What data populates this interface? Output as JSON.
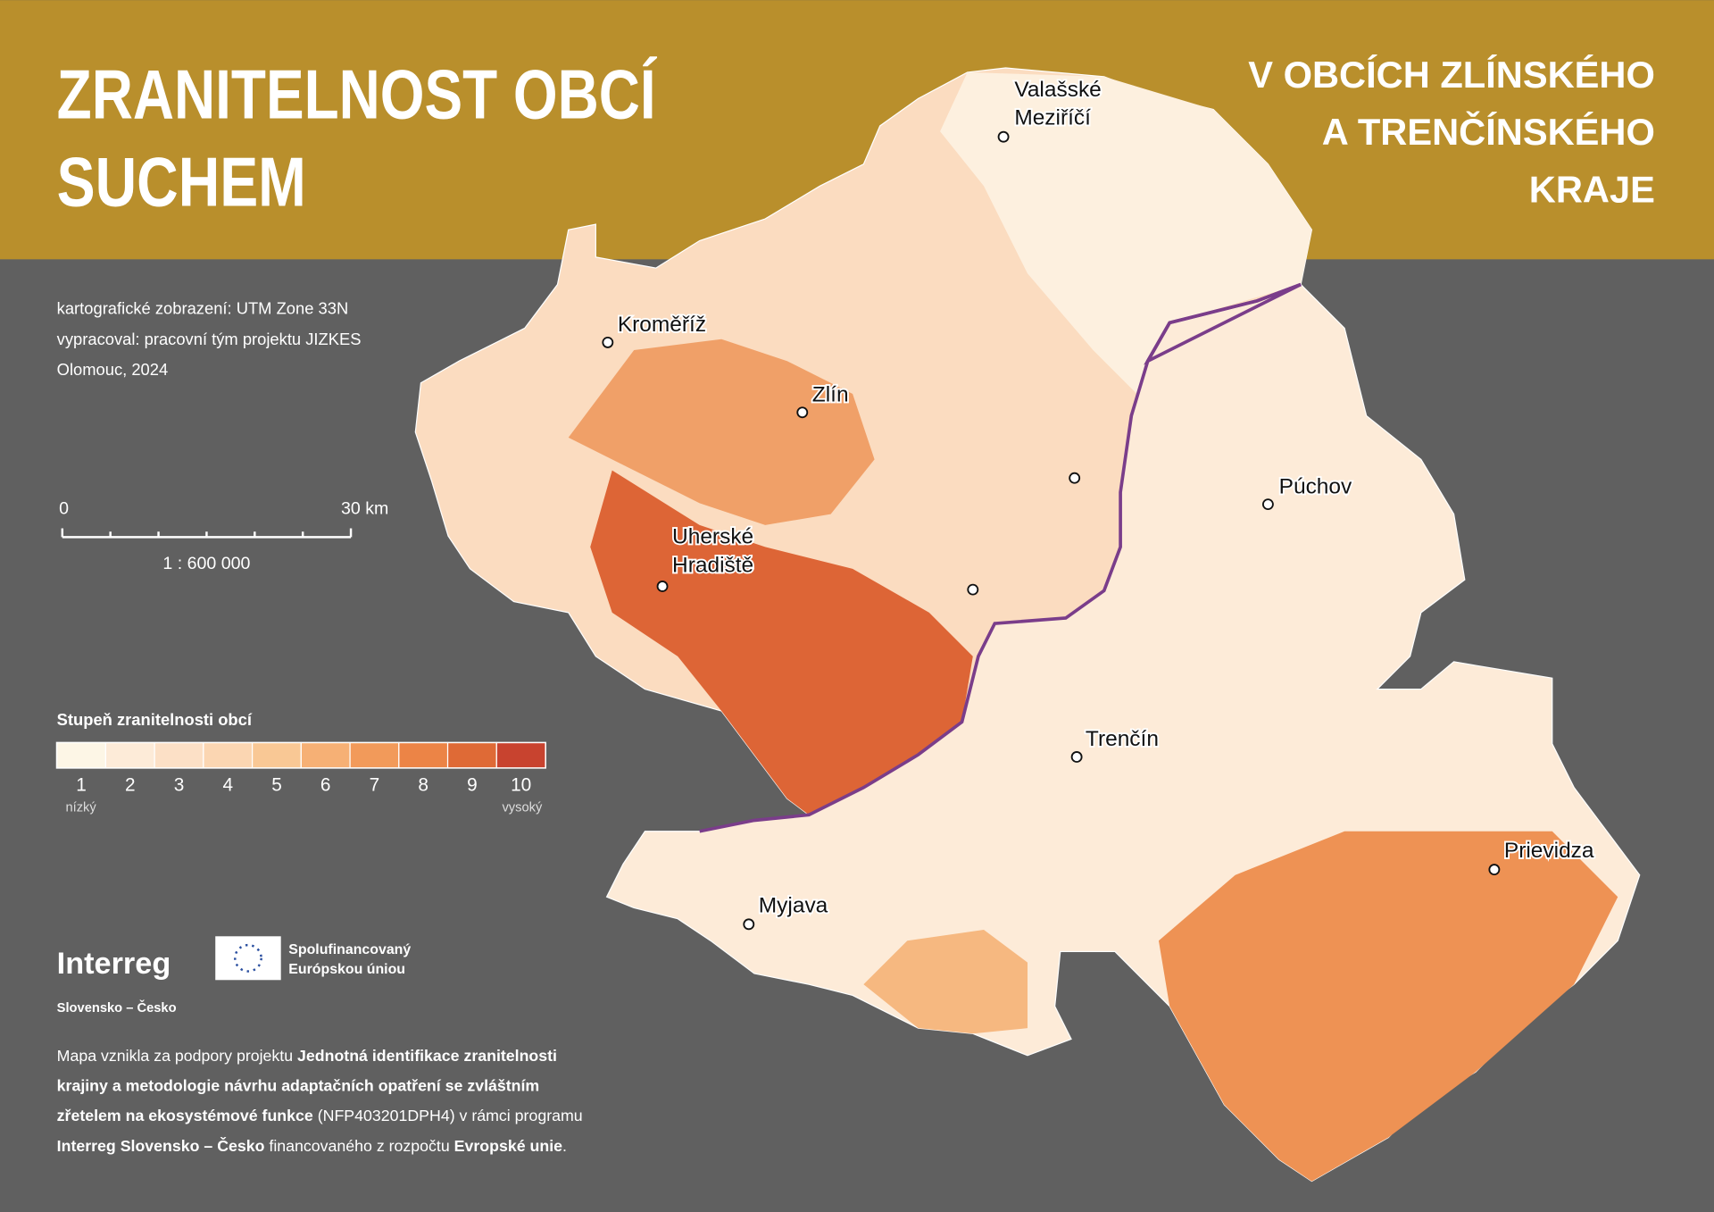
{
  "header": {
    "title": [
      "ZRANITELNOST OBCÍ",
      "SUCHEM"
    ],
    "subtitle": [
      "V OBCÍCH ZLÍNSKÉHO",
      "A TRENČÍNSKÉHO",
      "KRAJE"
    ]
  },
  "info": [
    "kartografické zobrazení: UTM Zone 33N",
    "vypracoval: pracovní tým projektu JIZKES",
    "Olomouc, 2024"
  ],
  "scale": {
    "start": "0",
    "end": "30 km",
    "ratio": "1 : 600 000"
  },
  "legend": {
    "title": "Stupeň zranitelnosti obcí",
    "classes": [
      1,
      2,
      3,
      4,
      5,
      6,
      7,
      8,
      9,
      10
    ],
    "colors": [
      "#fdf6e6",
      "#fdebd8",
      "#fce0c6",
      "#fbd6b2",
      "#f9c895",
      "#f6b075",
      "#f29a5a",
      "#ec8446",
      "#df6a36",
      "#c8432f"
    ],
    "low": "nízký",
    "high": "vysoký"
  },
  "cities": [
    {
      "name": [
        "Valašské",
        "Meziříčí"
      ]
    },
    {
      "name": [
        "Kroměříž"
      ]
    },
    {
      "name": [
        "Zlín"
      ]
    },
    {
      "name": [
        "Uherské",
        "Hradiště"
      ]
    },
    {
      "name": [
        "Púchov"
      ]
    },
    {
      "name": [
        "Trenčín"
      ]
    },
    {
      "name": [
        "Prievidza"
      ]
    },
    {
      "name": [
        "Myjava"
      ]
    }
  ],
  "logos": {
    "interreg": "Interreg",
    "eu": [
      "Spolufinancovaný",
      "Európskou úniou"
    ],
    "program": "Slovensko – Česko"
  },
  "footer": [
    [
      {
        "text": "Mapa vznikla za podpory projektu ",
        "bold": false
      },
      {
        "text": "Jednotná identifikace zranitelnosti",
        "bold": true
      }
    ],
    [
      {
        "text": "krajiny a metodologie návrhu adaptačních opatření se zvláštním",
        "bold": true
      }
    ],
    [
      {
        "text": "zřetelem na ekosystémové funkce",
        "bold": true
      },
      {
        "text": " (NFP403201DPH4) v rámci programu",
        "bold": false
      }
    ],
    [
      {
        "text": "Interreg Slovensko – Česko",
        "bold": true
      },
      {
        "text": " financovaného z rozpočtu ",
        "bold": false
      },
      {
        "text": "Evropské unie",
        "bold": true
      },
      {
        "text": ".",
        "bold": false
      }
    ]
  ]
}
